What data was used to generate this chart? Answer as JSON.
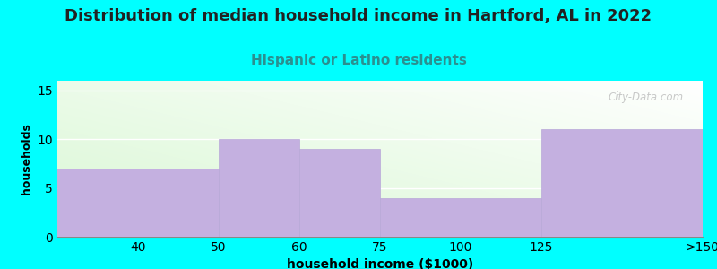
{
  "title": "Distribution of median household income in Hartford, AL in 2022",
  "subtitle": "Hispanic or Latino residents",
  "xlabel": "household income ($1000)",
  "ylabel": "households",
  "background_color": "#00FFFF",
  "bar_color": "#C4B0E0",
  "bar_edge_color": "#B8A8D8",
  "title_fontsize": 13,
  "subtitle_fontsize": 11,
  "subtitle_color": "#2A9090",
  "xlabel_fontsize": 10,
  "ylabel_fontsize": 9,
  "ylim": [
    0,
    16
  ],
  "yticks": [
    0,
    5,
    10,
    15
  ],
  "watermark": "City-Data.com",
  "bar_lefts": [
    0,
    2,
    3,
    4,
    6
  ],
  "bar_widths": [
    2,
    1,
    1,
    2,
    2
  ],
  "bar_heights": [
    7,
    10,
    9,
    4,
    11
  ],
  "xtick_positions": [
    1,
    2,
    3,
    4,
    5,
    6,
    8
  ],
  "xtick_labels": [
    "40",
    "50",
    "60",
    "75",
    "100",
    "125",
    ">150"
  ],
  "grid_color": "#FFFFFF",
  "grid_alpha": 1.0,
  "xlim": [
    0,
    8
  ],
  "grad_tl": [
    0.85,
    0.97,
    0.83
  ],
  "grad_br": [
    1.0,
    1.0,
    1.0
  ]
}
